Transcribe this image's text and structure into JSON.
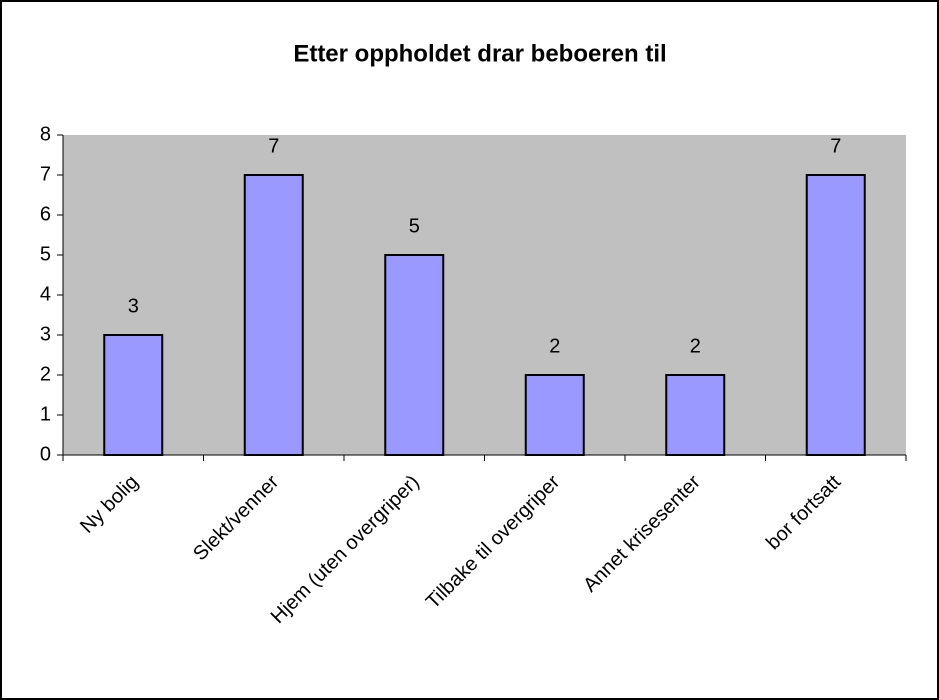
{
  "chart_data": {
    "type": "bar",
    "title": "Etter oppholdet drar beboeren til",
    "categories": [
      "Ny bolig",
      "Slekt/venner",
      "Hjem (uten overgriper)",
      "Tilbake til overgriper",
      "Annet krisesenter",
      "bor fortsatt"
    ],
    "values": [
      3,
      7,
      5,
      2,
      2,
      7
    ],
    "color": "#9999ff",
    "plot_background": "#c0c0c0",
    "ylim": [
      0,
      8
    ],
    "yticks": [
      0,
      1,
      2,
      3,
      4,
      5,
      6,
      7,
      8
    ],
    "grid": false
  }
}
